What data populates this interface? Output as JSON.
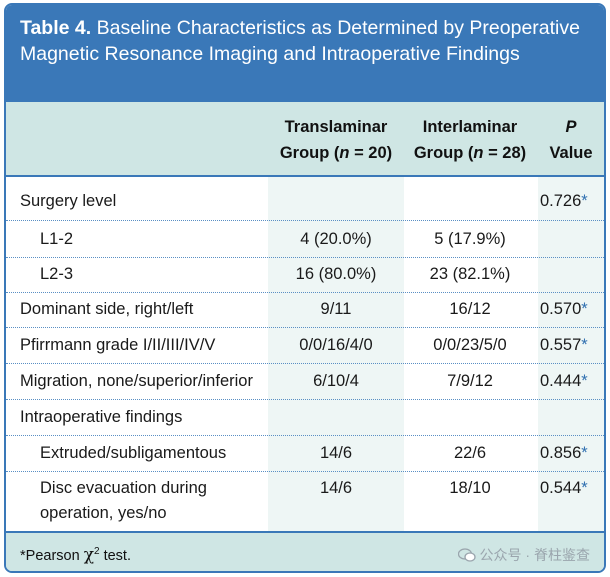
{
  "table": {
    "number": "Table 4.",
    "title": "Baseline Characteristics as Determined by Preoperative Magnetic Resonance Imaging and Intraoperative Findings"
  },
  "columns": {
    "col1_line1": "Translaminar",
    "col1_line2_prefix": "Group (",
    "col1_n": "n",
    "col1_line2_suffix": " = 20)",
    "col2_line1": "Interlaminar",
    "col2_line2_prefix": "Group (",
    "col2_n": "n",
    "col2_line2_suffix": " = 28)",
    "col3_line1": "P",
    "col3_line2": "Value"
  },
  "rows": [
    {
      "label": "Surgery level",
      "c1": "",
      "c2": "",
      "p": "0.726",
      "star": "*"
    },
    {
      "label": "L1-2",
      "c1": "4 (20.0%)",
      "c2": "5 (17.9%)",
      "p": "",
      "star": ""
    },
    {
      "label": "L2-3",
      "c1": "16 (80.0%)",
      "c2": "23 (82.1%)",
      "p": "",
      "star": ""
    },
    {
      "label": "Dominant side, right/left",
      "c1": "9/11",
      "c2": "16/12",
      "p": "0.570",
      "star": "*"
    },
    {
      "label": "Pfirrmann grade I/II/III/IV/V",
      "c1": "0/0/16/4/0",
      "c2": "0/0/23/5/0",
      "p": "0.557",
      "star": "*"
    },
    {
      "label": "Migration, none/superior/inferior",
      "c1": "6/10/4",
      "c2": "7/9/12",
      "p": "0.444",
      "star": "*"
    },
    {
      "label": "Intraoperative findings",
      "c1": "",
      "c2": "",
      "p": "",
      "star": ""
    },
    {
      "label": "Extruded/subligamentous",
      "c1": "14/6",
      "c2": "22/6",
      "p": "0.856",
      "star": "*"
    },
    {
      "label_line1": "Disc evacuation during",
      "label_line2": "operation, yes/no",
      "c1": "14/6",
      "c2": "18/10",
      "p": "0.544",
      "star": "*"
    }
  ],
  "footnote": {
    "prefix": "*Pearson ",
    "chi": "χ",
    "sup": "2",
    "suffix": " test."
  },
  "watermark": "公众号 · 脊柱鉴查"
}
